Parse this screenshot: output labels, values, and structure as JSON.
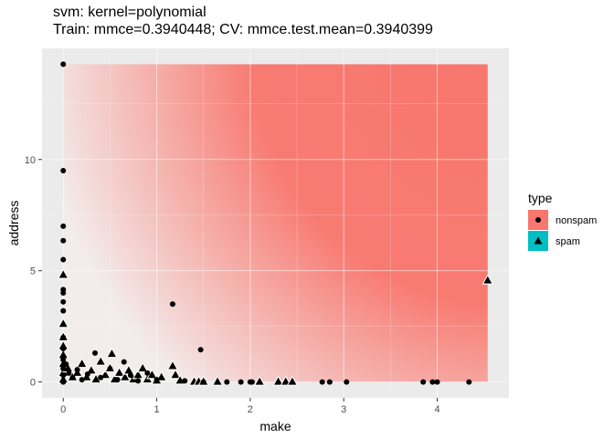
{
  "chart_data": {
    "type": "scatter",
    "title": "svm: kernel=polynomial",
    "subtitle": "Train: mmce=0.3940448; CV: mmce.test.mean=0.3940399",
    "xlabel": "make",
    "ylabel": "address",
    "xlim": [
      -0.227,
      4.767
    ],
    "ylim": [
      -0.714,
      14.994
    ],
    "x_ticks": [
      "0",
      "1",
      "2",
      "3",
      "4"
    ],
    "x_tick_values": [
      0,
      1,
      2,
      3,
      4
    ],
    "y_ticks": [
      "0",
      "5",
      "10",
      "15"
    ],
    "y_tick_values": [
      0,
      5,
      10,
      15
    ],
    "grid": true,
    "legend": {
      "title": "type",
      "placement": "right",
      "entries": [
        {
          "label": "nonspam",
          "color": "#F8766D",
          "shape": "circle"
        },
        {
          "label": "spam",
          "color": "#00BFC4",
          "shape": "triangle"
        }
      ]
    },
    "background_region": {
      "description": "prediction surface",
      "x_range": [
        0,
        4.54
      ],
      "y_range": [
        0,
        14.28
      ],
      "color_nonspam": "#F8766D"
    },
    "series": [
      {
        "name": "nonspam",
        "shape": "circle",
        "points": [
          [
            0,
            14.28
          ],
          [
            0,
            9.5
          ],
          [
            0,
            7.0
          ],
          [
            0,
            6.35
          ],
          [
            0,
            5.5
          ],
          [
            0,
            4.15
          ],
          [
            0,
            4.0
          ],
          [
            0,
            3.6
          ],
          [
            0,
            3.2
          ],
          [
            0,
            2.0
          ],
          [
            0,
            1.5
          ],
          [
            0,
            1.0
          ],
          [
            0,
            0.6
          ],
          [
            0,
            0.3
          ],
          [
            0,
            0
          ],
          [
            0.03,
            0.8
          ],
          [
            0.06,
            0.4
          ],
          [
            0.1,
            0.2
          ],
          [
            0.15,
            0.55
          ],
          [
            0.2,
            0.1
          ],
          [
            0.26,
            0.35
          ],
          [
            0.34,
            1.3
          ],
          [
            0.4,
            0.2
          ],
          [
            0.5,
            0.6
          ],
          [
            0.58,
            0.1
          ],
          [
            0.65,
            0.9
          ],
          [
            0.72,
            0.3
          ],
          [
            0.8,
            0.05
          ],
          [
            0.9,
            0.4
          ],
          [
            1.0,
            0.1
          ],
          [
            1.17,
            3.5
          ],
          [
            1.47,
            1.45
          ],
          [
            1.3,
            0.05
          ],
          [
            1.5,
            0
          ],
          [
            1.75,
            0
          ],
          [
            1.9,
            0
          ],
          [
            2.0,
            0
          ],
          [
            2.02,
            0
          ],
          [
            2.77,
            0
          ],
          [
            2.85,
            0
          ],
          [
            3.03,
            0
          ],
          [
            3.85,
            0
          ],
          [
            3.95,
            0
          ],
          [
            4.0,
            0
          ],
          [
            4.34,
            0
          ]
        ]
      },
      {
        "name": "spam",
        "shape": "triangle",
        "points": [
          [
            0,
            4.8
          ],
          [
            0,
            2.6
          ],
          [
            0,
            2.0
          ],
          [
            0,
            1.6
          ],
          [
            0,
            1.2
          ],
          [
            0,
            0.8
          ],
          [
            0,
            0.4
          ],
          [
            0,
            0.1
          ],
          [
            0.05,
            0.6
          ],
          [
            0.1,
            0.2
          ],
          [
            0.15,
            0.4
          ],
          [
            0.2,
            0.8
          ],
          [
            0.25,
            0.2
          ],
          [
            0.3,
            0.5
          ],
          [
            0.35,
            0.1
          ],
          [
            0.4,
            0.9
          ],
          [
            0.45,
            0.3
          ],
          [
            0.5,
            0.6
          ],
          [
            0.52,
            1.25
          ],
          [
            0.55,
            0.1
          ],
          [
            0.6,
            0.4
          ],
          [
            0.66,
            0.2
          ],
          [
            0.7,
            0.5
          ],
          [
            0.75,
            0.1
          ],
          [
            0.8,
            0.3
          ],
          [
            0.85,
            0.6
          ],
          [
            0.9,
            0.1
          ],
          [
            0.95,
            0.3
          ],
          [
            1.0,
            0.05
          ],
          [
            1.05,
            0.2
          ],
          [
            1.17,
            0.7
          ],
          [
            1.2,
            0.3
          ],
          [
            1.25,
            0.05
          ],
          [
            1.4,
            0
          ],
          [
            1.45,
            0
          ],
          [
            1.5,
            0
          ],
          [
            1.65,
            0
          ],
          [
            2.1,
            0
          ],
          [
            2.3,
            0
          ],
          [
            2.38,
            0
          ],
          [
            2.45,
            0
          ],
          [
            4.54,
            4.55
          ]
        ]
      }
    ]
  }
}
